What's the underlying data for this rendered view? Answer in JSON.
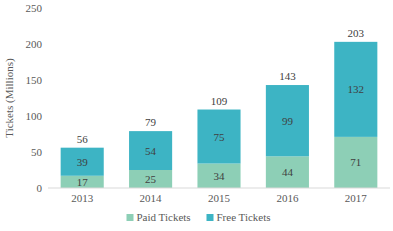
{
  "chart_data": {
    "type": "bar",
    "stacked": true,
    "data_labels": true,
    "legend": "bottom",
    "grid": false,
    "y_label": "Tickets (Millions)",
    "categories": [
      "2013",
      "2014",
      "2015",
      "2016",
      "2017"
    ],
    "series": [
      {
        "name": "Paid Tickets",
        "color": "#8dcfb6",
        "values": [
          17,
          25,
          34,
          44,
          71
        ]
      },
      {
        "name": "Free Tickets",
        "color": "#3db4c4",
        "values": [
          39,
          54,
          75,
          99,
          132
        ]
      }
    ],
    "totals": [
      56,
      79,
      109,
      143,
      203
    ],
    "ylim": [
      0,
      250
    ],
    "yticks": [
      0,
      50,
      100,
      150,
      200,
      250
    ]
  }
}
